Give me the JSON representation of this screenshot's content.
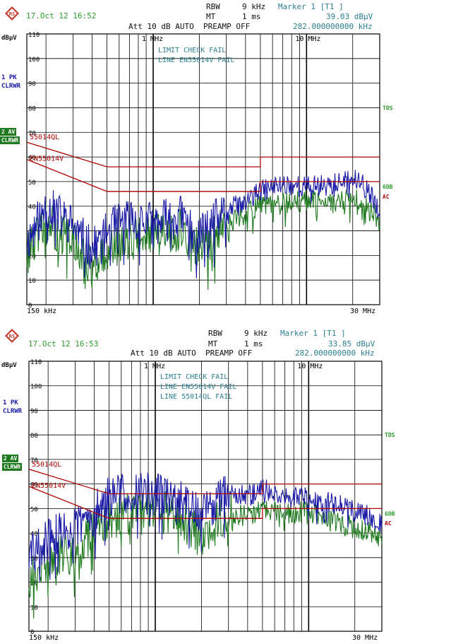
{
  "chart_data": [
    {
      "type": "line",
      "title": "",
      "xlabel": "",
      "ylabel": "dBµV",
      "x_scale": "log",
      "xlim_hz": [
        150000,
        30000000
      ],
      "ylim": [
        0,
        110
      ],
      "yticks": [
        0,
        10,
        20,
        30,
        40,
        50,
        60,
        70,
        80,
        90,
        100,
        110
      ],
      "y_tick_labels": [
        "0",
        "10",
        "20",
        "30",
        "40",
        "50",
        "60",
        "70",
        "80",
        "90",
        "100",
        "110"
      ],
      "x_tick_labels": [
        {
          "hz": 1000000,
          "label": "1 MHz"
        },
        {
          "hz": 10000000,
          "label": "10 MHz"
        }
      ],
      "x_start_label": "150 kHz",
      "x_stop_label": "30 MHz",
      "grid": true,
      "header": {
        "timestamp": "17.Oct 12 16:52",
        "rbw_label": "RBW",
        "rbw_value": "9 kHz",
        "mt_label": "MT",
        "mt_value": "1 ms",
        "marker_label": "Marker 1 [T1 ]",
        "marker_level": "39.03 dBµV",
        "marker_freq": "282.000000000 kHz",
        "settings": "Att 10 dB AUTO  PREAMP OFF",
        "unit": "dBµV"
      },
      "limit_check": {
        "result": "LIMIT CHECK   FAIL",
        "lines": [
          "LINE EN55014V FAIL"
        ]
      },
      "traces": [
        {
          "label": "1 PK",
          "mode": "CLRWR",
          "color": "#1a1aa6"
        },
        {
          "label": "2 AV",
          "mode": "CLRWR",
          "color": "#1f7a1f"
        }
      ],
      "right_labels": [
        {
          "text": "TDS",
          "y": 80,
          "color": "#2a9a2a"
        },
        {
          "text": "6DB",
          "y": 48,
          "color": "#2a9a2a"
        },
        {
          "text": "AC",
          "y": 44,
          "color": "#b00000"
        }
      ],
      "limit_lines": [
        {
          "name": "55014QL",
          "color": "#b00000",
          "points": [
            [
              150000,
              66
            ],
            [
              500000,
              56
            ],
            [
              5000000,
              56
            ],
            [
              5000000,
              60
            ],
            [
              30000000,
              60
            ]
          ]
        },
        {
          "name": "EN55014V",
          "color": "#b00000",
          "points": [
            [
              150000,
              59
            ],
            [
              500000,
              46
            ],
            [
              5000000,
              46
            ],
            [
              5000000,
              50
            ],
            [
              30000000,
              50
            ]
          ]
        }
      ],
      "series": [
        {
          "name": "1 PK",
          "color": "#1a1aa6",
          "x": [
            150000,
            200000,
            300000,
            400000,
            500000,
            700000,
            1000000,
            1500000,
            2000000,
            3000000,
            4000000,
            5000000,
            7000000,
            10000000,
            15000000,
            20000000,
            25000000,
            30000000
          ],
          "y": [
            25,
            40,
            32,
            22,
            30,
            35,
            33,
            36,
            28,
            38,
            42,
            46,
            49,
            48,
            49,
            51,
            47,
            37
          ]
        },
        {
          "name": "2 AV",
          "color": "#1f7a1f",
          "x": [
            150000,
            200000,
            300000,
            400000,
            500000,
            700000,
            1000000,
            1500000,
            2000000,
            3000000,
            4000000,
            5000000,
            7000000,
            10000000,
            15000000,
            20000000,
            25000000,
            30000000
          ],
          "y": [
            20,
            33,
            25,
            15,
            20,
            27,
            28,
            30,
            22,
            33,
            37,
            40,
            41,
            42,
            41,
            43,
            41,
            33
          ]
        }
      ]
    },
    {
      "type": "line",
      "title": "",
      "xlabel": "",
      "ylabel": "dBµV",
      "x_scale": "log",
      "xlim_hz": [
        150000,
        30000000
      ],
      "ylim": [
        0,
        110
      ],
      "yticks": [
        0,
        10,
        20,
        30,
        40,
        50,
        60,
        70,
        80,
        90,
        100,
        110
      ],
      "y_tick_labels": [
        "0",
        "10",
        "20",
        "30",
        "40",
        "50",
        "60",
        "70",
        "80",
        "90",
        "100",
        "110"
      ],
      "x_tick_labels": [
        {
          "hz": 1000000,
          "label": "1 MHz"
        },
        {
          "hz": 10000000,
          "label": "10 MHz"
        }
      ],
      "x_start_label": "150 kHz",
      "x_stop_label": "30 MHz",
      "grid": true,
      "header": {
        "timestamp": "17.Oct 12 16:53",
        "rbw_label": "RBW",
        "rbw_value": "9 kHz",
        "mt_label": "MT",
        "mt_value": "1 ms",
        "marker_label": "Marker 1 [T1 ]",
        "marker_level": "33.85 dBµV",
        "marker_freq": "282.000000000 kHz",
        "settings": "Att 10 dB AUTO  PREAMP OFF",
        "unit": "dBµV"
      },
      "limit_check": {
        "result": "LIMIT CHECK   FAIL",
        "lines": [
          "LINE EN55014V FAIL",
          "LINE 55014QL  FAIL"
        ]
      },
      "traces": [
        {
          "label": "1 PK",
          "mode": "CLRWR",
          "color": "#1a1aa6"
        },
        {
          "label": "2 AV",
          "mode": "CLRWR",
          "color": "#1f7a1f"
        }
      ],
      "right_labels": [
        {
          "text": "TDS",
          "y": 80,
          "color": "#2a9a2a"
        },
        {
          "text": "6DB",
          "y": 48,
          "color": "#2a9a2a"
        },
        {
          "text": "AC",
          "y": 44,
          "color": "#b00000"
        }
      ],
      "limit_lines": [
        {
          "name": "55014QL",
          "color": "#b00000",
          "points": [
            [
              150000,
              66
            ],
            [
              500000,
              56
            ],
            [
              5000000,
              56
            ],
            [
              5000000,
              60
            ],
            [
              30000000,
              60
            ]
          ]
        },
        {
          "name": "EN55014V",
          "color": "#b00000",
          "points": [
            [
              150000,
              59
            ],
            [
              500000,
              46
            ],
            [
              5000000,
              46
            ],
            [
              5000000,
              50
            ],
            [
              30000000,
              50
            ]
          ]
        }
      ],
      "series": [
        {
          "name": "1 PK",
          "color": "#1a1aa6",
          "x": [
            150000,
            200000,
            300000,
            400000,
            500000,
            700000,
            1000000,
            1500000,
            2000000,
            3000000,
            4000000,
            5000000,
            7000000,
            10000000,
            15000000,
            20000000,
            25000000,
            30000000
          ],
          "y": [
            30,
            38,
            42,
            48,
            55,
            57,
            56,
            53,
            48,
            57,
            55,
            58,
            55,
            54,
            52,
            50,
            47,
            44
          ]
        },
        {
          "name": "2 AV",
          "color": "#1f7a1f",
          "x": [
            150000,
            200000,
            300000,
            400000,
            500000,
            700000,
            1000000,
            1500000,
            2000000,
            3000000,
            4000000,
            5000000,
            7000000,
            10000000,
            15000000,
            20000000,
            25000000,
            30000000
          ],
          "y": [
            22,
            28,
            33,
            40,
            45,
            48,
            49,
            46,
            38,
            48,
            47,
            50,
            48,
            49,
            45,
            42,
            41,
            38
          ]
        }
      ]
    }
  ]
}
